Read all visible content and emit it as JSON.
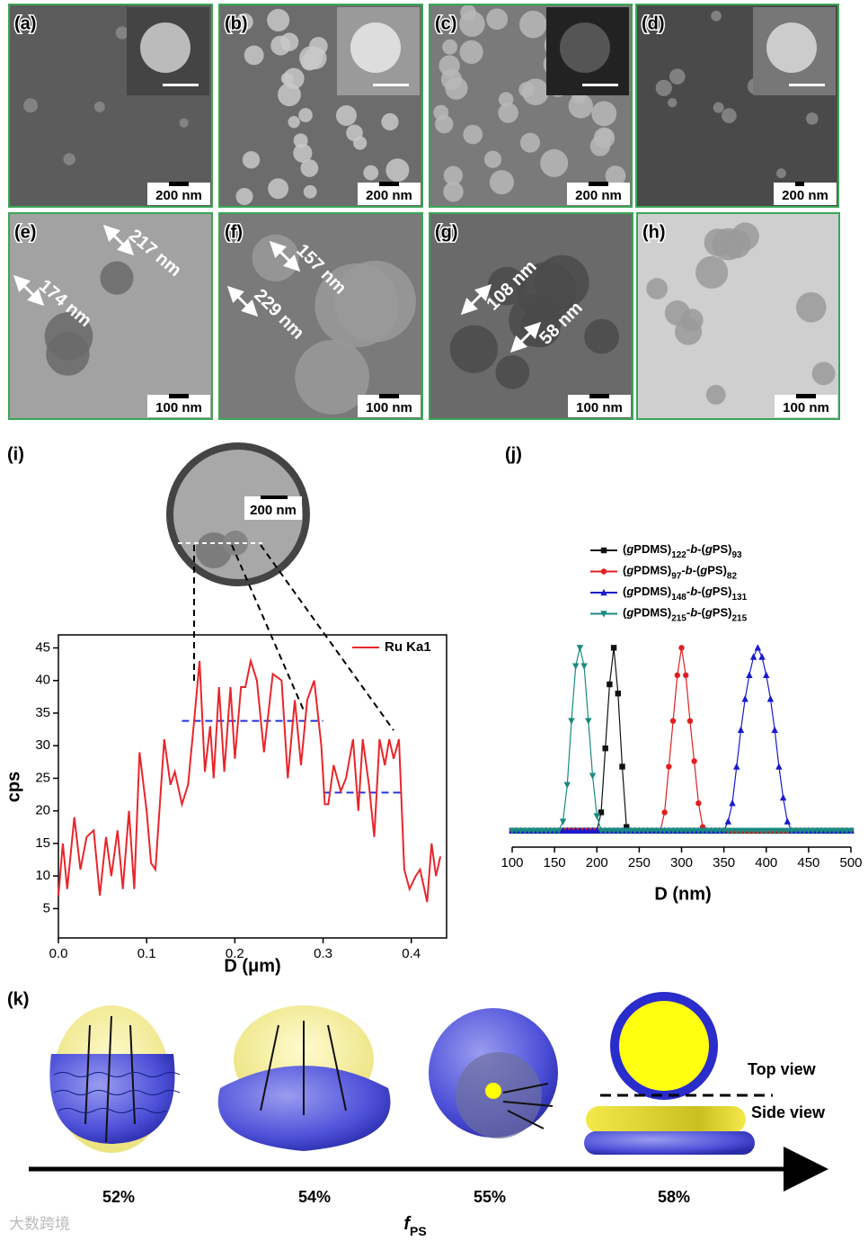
{
  "figure": {
    "panels": [
      {
        "label": "(a)",
        "scale_bar": "200 nm"
      },
      {
        "label": "(b)",
        "scale_bar": "200 nm"
      },
      {
        "label": "(c)",
        "scale_bar": "200 nm"
      },
      {
        "label": "(d)",
        "scale_bar": "200 nm"
      },
      {
        "label": "(e)",
        "scale_bar": "100 nm",
        "annotations": [
          "217 nm",
          "174 nm"
        ]
      },
      {
        "label": "(f)",
        "scale_bar": "100 nm",
        "annotations": [
          "157 nm",
          "229 nm"
        ]
      },
      {
        "label": "(g)",
        "scale_bar": "100 nm",
        "annotations": [
          "108 nm",
          "58 nm"
        ]
      },
      {
        "label": "(h)",
        "scale_bar": "100 nm"
      }
    ],
    "panel_i": {
      "label": "(i)",
      "inset_scale_bar": "200 nm"
    },
    "panel_j": {
      "label": "(j)"
    },
    "panel_k": {
      "label": "(k)",
      "fractions": [
        "52%",
        "54%",
        "55%",
        "58%"
      ],
      "top_view": "Top view",
      "side_view": "Side view",
      "axis_label": "fPS"
    },
    "watermark": "大数跨境"
  },
  "chart_data": [
    {
      "type": "line",
      "x_label": "D (μm)",
      "y_label": "cps",
      "frame": true,
      "legend": "upper right",
      "x": [
        0,
        0.005,
        0.01,
        0.018,
        0.025,
        0.032,
        0.04,
        0.047,
        0.054,
        0.06,
        0.067,
        0.073,
        0.08,
        0.086,
        0.092,
        0.1,
        0.105,
        0.11,
        0.12,
        0.127,
        0.132,
        0.14,
        0.147,
        0.154,
        0.16,
        0.166,
        0.172,
        0.176,
        0.182,
        0.188,
        0.195,
        0.2,
        0.207,
        0.212,
        0.218,
        0.225,
        0.233,
        0.243,
        0.253,
        0.26,
        0.268,
        0.275,
        0.282,
        0.29,
        0.298,
        0.302,
        0.306,
        0.312,
        0.32,
        0.326,
        0.334,
        0.34,
        0.345,
        0.352,
        0.358,
        0.364,
        0.37,
        0.375,
        0.38,
        0.386,
        0.392,
        0.398,
        0.405,
        0.41,
        0.418,
        0.423,
        0.428,
        0.433
      ],
      "series": [
        {
          "name": "Ru Ka1",
          "color": "#e8262b",
          "values": [
            7,
            15,
            8,
            19,
            11,
            16,
            17,
            7,
            16,
            10,
            17,
            8,
            20,
            8,
            29,
            20,
            12,
            11,
            31,
            24,
            26,
            21,
            24,
            34,
            43,
            26,
            33,
            25,
            39,
            26,
            39,
            28,
            39,
            39,
            43,
            40,
            29,
            41,
            40,
            25,
            37,
            27,
            37,
            40,
            30,
            21,
            21,
            27,
            23,
            25,
            31,
            20,
            31,
            24,
            16,
            31,
            27,
            31,
            28,
            31,
            11,
            8,
            10,
            11,
            6,
            15,
            10,
            13
          ]
        }
      ],
      "reference_lines": [
        {
          "x": [
            0.14,
            0.3
          ],
          "y": 33.8,
          "color": "#2233dd"
        },
        {
          "x": [
            0.3,
            0.39
          ],
          "y": 22.8,
          "color": "#2233dd"
        }
      ],
      "xlim": [
        0,
        0.44
      ],
      "ylim": [
        0.5,
        47
      ],
      "xticks": [
        {
          "value": 0,
          "label": "0.0"
        },
        0.1,
        0.2,
        0.3,
        0.4
      ],
      "yticks": [
        5,
        10,
        15,
        20,
        25,
        30,
        35,
        40,
        45
      ]
    },
    {
      "type": "line",
      "x_label": "D (nm)",
      "frame": false,
      "legend": "above",
      "x": [
        100,
        105,
        110,
        115,
        120,
        125,
        130,
        135,
        140,
        145,
        150,
        155,
        160,
        165,
        170,
        175,
        180,
        185,
        190,
        195,
        200,
        205,
        210,
        215,
        220,
        225,
        230,
        235,
        240,
        245,
        250,
        255,
        260,
        265,
        270,
        275,
        280,
        285,
        290,
        295,
        300,
        305,
        310,
        315,
        320,
        325,
        330,
        335,
        340,
        345,
        350,
        355,
        360,
        365,
        370,
        375,
        380,
        385,
        390,
        395,
        400,
        405,
        410,
        415,
        420,
        425,
        430,
        435,
        440,
        445,
        450,
        455,
        460,
        465,
        470,
        475,
        480,
        485,
        490,
        495,
        500
      ],
      "series": [
        {
          "name": "(gPDMS)122-b-(gPS)93",
          "color": "#111111",
          "marker": "square",
          "values": [
            0,
            0,
            0,
            0,
            0,
            0,
            0,
            0,
            0,
            0,
            0,
            0,
            0,
            0,
            0,
            0,
            0,
            0,
            0,
            0,
            0,
            10,
            45,
            80,
            100,
            75,
            35,
            2,
            0,
            0,
            0,
            0,
            0,
            0,
            0,
            0,
            0,
            0,
            0,
            0,
            0,
            0,
            0,
            0,
            0,
            0,
            0,
            0,
            0,
            0,
            0,
            0,
            0,
            0,
            0,
            0,
            0,
            0,
            0,
            0,
            0,
            0,
            0,
            0,
            0,
            0,
            0,
            0,
            0,
            0,
            0,
            0,
            0,
            0,
            0,
            0,
            0,
            0,
            0,
            0,
            0
          ]
        },
        {
          "name": "(gPDMS)97-b-(gPS)82",
          "color": "#e02020",
          "marker": "circle",
          "values": [
            0,
            0,
            0,
            0,
            0,
            0,
            0,
            0,
            0,
            0,
            0,
            0,
            0,
            0,
            0,
            0,
            0,
            0,
            0,
            0,
            0,
            0,
            0,
            0,
            0,
            0,
            0,
            0,
            0,
            0,
            0,
            0,
            0,
            0,
            0,
            0,
            10,
            35,
            60,
            85,
            100,
            85,
            60,
            38,
            15,
            2,
            0,
            0,
            0,
            0,
            0,
            0,
            0,
            0,
            0,
            0,
            0,
            0,
            0,
            0,
            0,
            0,
            0,
            0,
            0,
            0,
            0,
            0,
            0,
            0,
            0,
            0,
            0,
            0,
            0,
            0,
            0,
            0,
            0,
            0,
            0
          ]
        },
        {
          "name": "(gPDMS)148-b-(gPS)131",
          "color": "#1a1acc",
          "marker": "triangle-up",
          "values": [
            0,
            0,
            0,
            0,
            0,
            0,
            0,
            0,
            0,
            0,
            0,
            0,
            0,
            0,
            0,
            0,
            0,
            0,
            0,
            0,
            0,
            0,
            0,
            0,
            0,
            0,
            0,
            0,
            0,
            0,
            0,
            0,
            0,
            0,
            0,
            0,
            0,
            0,
            0,
            0,
            0,
            0,
            0,
            0,
            0,
            0,
            0,
            0,
            0,
            0,
            0,
            5,
            15,
            35,
            55,
            72,
            85,
            95,
            100,
            95,
            85,
            72,
            55,
            35,
            18,
            5,
            0,
            0,
            0,
            0,
            0,
            0,
            0,
            0,
            0,
            0,
            0,
            0,
            0,
            0,
            0
          ]
        },
        {
          "name": "(gPDMS)215-b-(gPS)215",
          "color": "#1a8a80",
          "marker": "triangle-down",
          "values": [
            0,
            0,
            0,
            0,
            0,
            0,
            0,
            0,
            0,
            0,
            0,
            0,
            5,
            25,
            60,
            90,
            100,
            90,
            60,
            30,
            8,
            0,
            0,
            0,
            0,
            0,
            0,
            0,
            0,
            0,
            0,
            0,
            0,
            0,
            0,
            0,
            0,
            0,
            0,
            0,
            0,
            0,
            0,
            0,
            0,
            0,
            0,
            0,
            0,
            0,
            0,
            0,
            0,
            0,
            0,
            0,
            0,
            0,
            0,
            0,
            0,
            0,
            0,
            0,
            0,
            0,
            0,
            0,
            0,
            0,
            0,
            0,
            0,
            0,
            0,
            0,
            0,
            0,
            0,
            0,
            0
          ]
        }
      ],
      "xlim": [
        100,
        500
      ],
      "ylim": [
        -9,
        110
      ],
      "xticks": [
        100,
        150,
        200,
        250,
        300,
        350,
        400,
        450,
        500
      ]
    }
  ]
}
